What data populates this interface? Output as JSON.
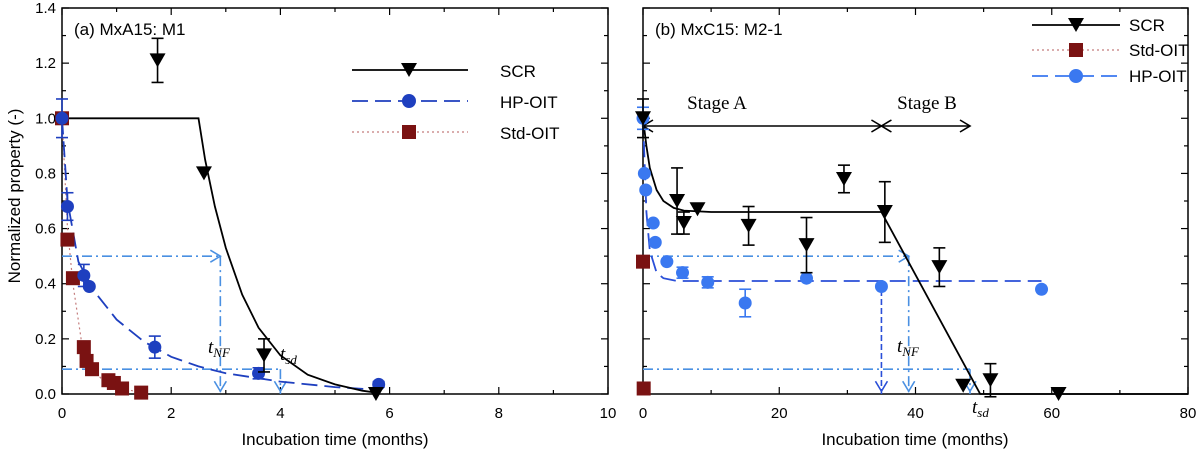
{
  "ylabel": "Normalized property (-)",
  "colors": {
    "scr": "#000000",
    "hp": "#1e3fbf",
    "hp_b": "#3a78f0",
    "std": "#7a1212",
    "guide": "#4a90e2"
  },
  "chart_data": [
    {
      "type": "scatter",
      "panel": "a",
      "title": "(a) MxA15:  M1",
      "xlabel": "Incubation time (months)",
      "ylabel": "Normalized property (-)",
      "xlim": [
        0,
        10
      ],
      "ylim": [
        0,
        1.4
      ],
      "xticks": [
        "0",
        "2",
        "4",
        "6",
        "8",
        "10"
      ],
      "yticks": [
        "0.0",
        "0.2",
        "0.4",
        "0.6",
        "0.8",
        "1.0",
        "1.2",
        "1.4"
      ],
      "legend": [
        "SCR",
        "HP-OIT",
        "Std-OIT"
      ],
      "annotations": {
        "t_nf": "t",
        "t_nf_sub": "NF",
        "t_sd": "t",
        "t_sd_sub": "sd"
      },
      "guides": {
        "t_nf_month": 2.9,
        "t_sd_month": 4.0,
        "y_half": 0.5,
        "y_low": 0.09
      },
      "series": [
        {
          "name": "SCR",
          "marker": "triangle-down",
          "points": [
            {
              "x": 1.75,
              "y": 1.21,
              "err": 0.08
            },
            {
              "x": 2.6,
              "y": 0.8,
              "err": 0
            },
            {
              "x": 3.7,
              "y": 0.14,
              "err": 0.06
            },
            {
              "x": 5.75,
              "y": 0.0,
              "err": 0
            }
          ],
          "fit": [
            {
              "x": 0,
              "y": 1.0
            },
            {
              "x": 2.5,
              "y": 1.0
            },
            {
              "x": 2.62,
              "y": 0.85
            },
            {
              "x": 2.8,
              "y": 0.68
            },
            {
              "x": 3.0,
              "y": 0.53
            },
            {
              "x": 3.3,
              "y": 0.36
            },
            {
              "x": 3.6,
              "y": 0.24
            },
            {
              "x": 4.0,
              "y": 0.14
            },
            {
              "x": 4.5,
              "y": 0.07
            },
            {
              "x": 5.0,
              "y": 0.035
            },
            {
              "x": 5.5,
              "y": 0.012
            },
            {
              "x": 5.75,
              "y": 0.005
            }
          ]
        },
        {
          "name": "HP-OIT",
          "marker": "circle",
          "points": [
            {
              "x": 0.0,
              "y": 1.0,
              "err": 0.07
            },
            {
              "x": 0.1,
              "y": 0.68,
              "err": 0.05
            },
            {
              "x": 0.4,
              "y": 0.43,
              "err": 0.04
            },
            {
              "x": 0.5,
              "y": 0.39,
              "err": 0
            },
            {
              "x": 1.7,
              "y": 0.17,
              "err": 0.04
            },
            {
              "x": 3.6,
              "y": 0.075,
              "err": 0.02
            },
            {
              "x": 5.8,
              "y": 0.035,
              "err": 0.01
            }
          ],
          "fit": [
            {
              "x": 0,
              "y": 1.0
            },
            {
              "x": 0.1,
              "y": 0.7
            },
            {
              "x": 0.3,
              "y": 0.48
            },
            {
              "x": 0.6,
              "y": 0.37
            },
            {
              "x": 1.0,
              "y": 0.27
            },
            {
              "x": 1.5,
              "y": 0.19
            },
            {
              "x": 2.0,
              "y": 0.135
            },
            {
              "x": 2.5,
              "y": 0.1
            },
            {
              "x": 3.0,
              "y": 0.075
            },
            {
              "x": 4.0,
              "y": 0.045
            },
            {
              "x": 5.0,
              "y": 0.025
            },
            {
              "x": 5.8,
              "y": 0.015
            }
          ]
        },
        {
          "name": "Std-OIT",
          "marker": "square",
          "points": [
            {
              "x": 0.0,
              "y": 1.0
            },
            {
              "x": 0.1,
              "y": 0.56
            },
            {
              "x": 0.2,
              "y": 0.42
            },
            {
              "x": 0.4,
              "y": 0.17
            },
            {
              "x": 0.45,
              "y": 0.12
            },
            {
              "x": 0.55,
              "y": 0.09
            },
            {
              "x": 0.85,
              "y": 0.05
            },
            {
              "x": 0.95,
              "y": 0.04
            },
            {
              "x": 1.1,
              "y": 0.02
            },
            {
              "x": 1.45,
              "y": 0.005
            }
          ],
          "fit": [
            {
              "x": 0,
              "y": 1.0
            },
            {
              "x": 0.1,
              "y": 0.6
            },
            {
              "x": 0.2,
              "y": 0.4
            },
            {
              "x": 0.35,
              "y": 0.2
            },
            {
              "x": 0.5,
              "y": 0.1
            },
            {
              "x": 0.8,
              "y": 0.04
            },
            {
              "x": 1.2,
              "y": 0.015
            },
            {
              "x": 1.5,
              "y": 0.005
            }
          ]
        }
      ]
    },
    {
      "type": "scatter",
      "panel": "b",
      "title": "(b) MxC15: M2-1",
      "xlabel": "Incubation time (months)",
      "ylabel": "",
      "xlim": [
        0,
        80
      ],
      "ylim": [
        0,
        1.4
      ],
      "xticks": [
        "0",
        "20",
        "40",
        "60",
        "80"
      ],
      "legend": [
        "SCR",
        "Std-OIT",
        "HP-OIT"
      ],
      "stage_a": "Stage A",
      "stage_b": "Stage B",
      "annotations": {
        "t_nf": "t",
        "t_nf_sub": "NF",
        "t_sd": "t",
        "t_sd_sub": "sd"
      },
      "guides": {
        "stage_a_end": 35,
        "stage_b_end": 48,
        "t_nf_month": 39,
        "t_sd_month": 48,
        "y_half": 0.5,
        "y_low": 0.09,
        "hp_plateau": 0.41
      },
      "series": [
        {
          "name": "SCR",
          "marker": "triangle-down",
          "points": [
            {
              "x": 0.0,
              "y": 1.0,
              "err": 0.07
            },
            {
              "x": 5.0,
              "y": 0.7,
              "err": 0.12
            },
            {
              "x": 6.0,
              "y": 0.62,
              "err": 0.04
            },
            {
              "x": 8.0,
              "y": 0.67,
              "err": 0
            },
            {
              "x": 15.5,
              "y": 0.61,
              "err": 0.07
            },
            {
              "x": 24.0,
              "y": 0.54,
              "err": 0.1
            },
            {
              "x": 29.5,
              "y": 0.78,
              "err": 0.05
            },
            {
              "x": 35.5,
              "y": 0.66,
              "err": 0.11
            },
            {
              "x": 43.5,
              "y": 0.46,
              "err": 0.07
            },
            {
              "x": 47.0,
              "y": 0.03,
              "err": 0
            },
            {
              "x": 51.0,
              "y": 0.05,
              "err": 0.06
            },
            {
              "x": 61.0,
              "y": 0.0,
              "err": 0
            }
          ],
          "fit": [
            {
              "x": 0,
              "y": 1.0
            },
            {
              "x": 0.5,
              "y": 0.9
            },
            {
              "x": 1.0,
              "y": 0.82
            },
            {
              "x": 2.0,
              "y": 0.74
            },
            {
              "x": 3.0,
              "y": 0.7
            },
            {
              "x": 4.5,
              "y": 0.675
            },
            {
              "x": 6.0,
              "y": 0.665
            },
            {
              "x": 10.0,
              "y": 0.66
            },
            {
              "x": 35.0,
              "y": 0.66
            },
            {
              "x": 49.5,
              "y": 0.0
            },
            {
              "x": 80.0,
              "y": 0.0
            }
          ]
        },
        {
          "name": "Std-OIT",
          "marker": "square",
          "points": [
            {
              "x": 0.0,
              "y": 0.48
            },
            {
              "x": 0.1,
              "y": 0.02
            }
          ]
        },
        {
          "name": "HP-OIT",
          "marker": "circle",
          "points": [
            {
              "x": 0.0,
              "y": 1.0,
              "err": 0.04
            },
            {
              "x": 0.2,
              "y": 0.8,
              "err": 0
            },
            {
              "x": 0.4,
              "y": 0.74,
              "err": 0
            },
            {
              "x": 1.5,
              "y": 0.62,
              "err": 0
            },
            {
              "x": 1.8,
              "y": 0.55,
              "err": 0
            },
            {
              "x": 3.5,
              "y": 0.48,
              "err": 0
            },
            {
              "x": 5.8,
              "y": 0.44,
              "err": 0.02
            },
            {
              "x": 9.5,
              "y": 0.405,
              "err": 0.02
            },
            {
              "x": 15.0,
              "y": 0.33,
              "err": 0.05
            },
            {
              "x": 24.0,
              "y": 0.42,
              "err": 0
            },
            {
              "x": 35.0,
              "y": 0.39,
              "err": 0
            },
            {
              "x": 58.5,
              "y": 0.38,
              "err": 0
            }
          ],
          "fit": [
            {
              "x": 0,
              "y": 1.0
            },
            {
              "x": 0.5,
              "y": 0.66
            },
            {
              "x": 1.0,
              "y": 0.52
            },
            {
              "x": 2.0,
              "y": 0.44
            },
            {
              "x": 3.0,
              "y": 0.42
            },
            {
              "x": 5.0,
              "y": 0.41
            },
            {
              "x": 58.5,
              "y": 0.41
            }
          ]
        }
      ]
    }
  ]
}
